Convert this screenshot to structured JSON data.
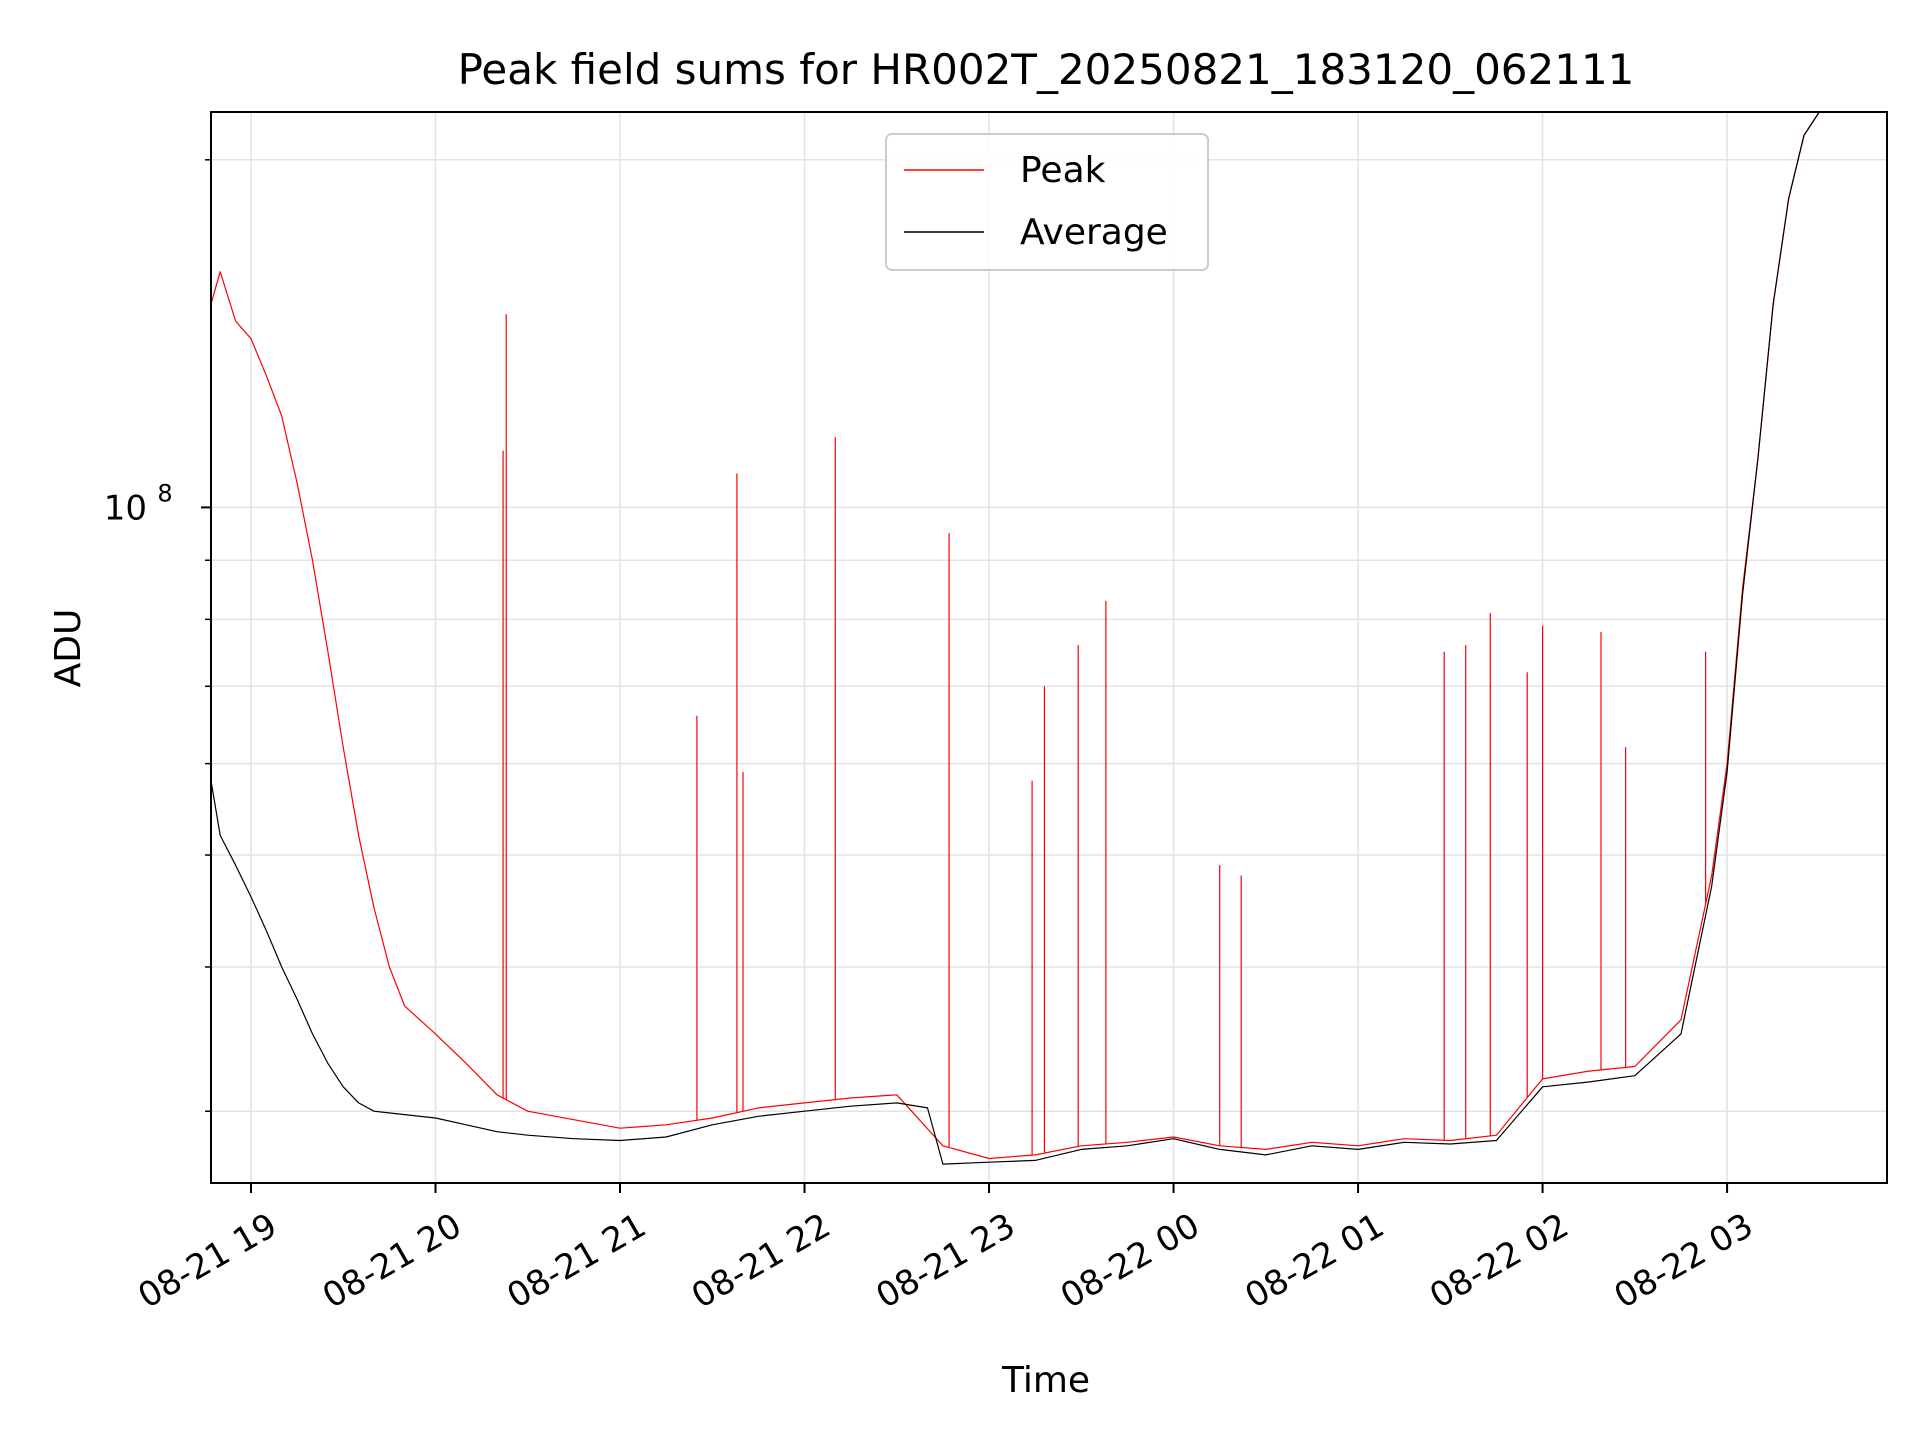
{
  "chart_data": {
    "type": "line",
    "title": "Peak field sums for HR002T_20250821_183120_062111",
    "xlabel": "Time",
    "ylabel": "ADU",
    "y_scale": "log",
    "ylim": [
      26000000,
      220000000
    ],
    "xlim": [
      "2025-08-21 18:47",
      "2025-08-22 03:52"
    ],
    "grid": true,
    "legend_position": "top-center",
    "x_ticks": [
      {
        "label": "08-21 19",
        "time": "2025-08-21 19:00"
      },
      {
        "label": "08-21 20",
        "time": "2025-08-21 20:00"
      },
      {
        "label": "08-21 21",
        "time": "2025-08-21 21:00"
      },
      {
        "label": "08-21 22",
        "time": "2025-08-21 22:00"
      },
      {
        "label": "08-21 23",
        "time": "2025-08-21 23:00"
      },
      {
        "label": "08-22 00",
        "time": "2025-08-22 00:00"
      },
      {
        "label": "08-22 01",
        "time": "2025-08-22 01:00"
      },
      {
        "label": "08-22 02",
        "time": "2025-08-22 02:00"
      },
      {
        "label": "08-22 03",
        "time": "2025-08-22 03:00"
      }
    ],
    "y_tick_major": {
      "base": "10",
      "exp": "8",
      "value": 100000000
    },
    "y_minor_ticks": [
      30000000,
      40000000,
      50000000,
      60000000,
      70000000,
      80000000,
      90000000,
      200000000
    ],
    "series": [
      {
        "name": "Peak",
        "color": "#ff0000",
        "x": [
          "2025-08-21 18:47",
          "2025-08-21 18:50",
          "2025-08-21 18:55",
          "2025-08-21 19:00",
          "2025-08-21 19:05",
          "2025-08-21 19:10",
          "2025-08-21 19:15",
          "2025-08-21 19:20",
          "2025-08-21 19:25",
          "2025-08-21 19:30",
          "2025-08-21 19:35",
          "2025-08-21 19:40",
          "2025-08-21 19:45",
          "2025-08-21 19:50",
          "2025-08-21 20:00",
          "2025-08-21 20:10",
          "2025-08-21 20:20",
          "2025-08-21 20:30",
          "2025-08-21 20:45",
          "2025-08-21 21:00",
          "2025-08-21 21:15",
          "2025-08-21 21:30",
          "2025-08-21 21:45",
          "2025-08-21 22:00",
          "2025-08-21 22:15",
          "2025-08-21 22:30",
          "2025-08-21 22:45",
          "2025-08-21 23:00",
          "2025-08-21 23:15",
          "2025-08-21 23:30",
          "2025-08-21 23:45",
          "2025-08-22 00:00",
          "2025-08-22 00:15",
          "2025-08-22 00:30",
          "2025-08-22 00:45",
          "2025-08-22 01:00",
          "2025-08-22 01:15",
          "2025-08-22 01:30",
          "2025-08-22 01:45",
          "2025-08-22 02:00",
          "2025-08-22 02:15",
          "2025-08-22 02:30",
          "2025-08-22 02:45",
          "2025-08-22 02:55",
          "2025-08-22 03:00",
          "2025-08-22 03:05",
          "2025-08-22 03:10",
          "2025-08-22 03:15",
          "2025-08-22 03:20",
          "2025-08-22 03:25",
          "2025-08-22 03:30",
          "2025-08-22 03:52"
        ],
        "values": [
          150000000,
          160000000,
          145000000,
          140000000,
          130000000,
          120000000,
          105000000,
          90000000,
          75000000,
          62000000,
          52000000,
          45000000,
          40000000,
          37000000,
          35000000,
          33000000,
          31000000,
          30000000,
          29500000,
          29000000,
          29200000,
          29600000,
          30200000,
          30500000,
          30800000,
          31000000,
          28000000,
          27300000,
          27500000,
          28000000,
          28200000,
          28500000,
          28000000,
          27800000,
          28200000,
          28000000,
          28400000,
          28300000,
          28600000,
          32000000,
          32500000,
          32800000,
          36000000,
          48000000,
          60000000,
          85000000,
          110000000,
          150000000,
          185000000,
          210000000,
          220000000,
          220000000
        ],
        "spikes": [
          {
            "x": "2025-08-21 20:23",
            "y": 147000000
          },
          {
            "x": "2025-08-21 20:22",
            "y": 112000000
          },
          {
            "x": "2025-08-21 21:38",
            "y": 107000000
          },
          {
            "x": "2025-08-21 22:10",
            "y": 115000000
          },
          {
            "x": "2025-08-21 21:25",
            "y": 66000000
          },
          {
            "x": "2025-08-21 21:40",
            "y": 59000000
          },
          {
            "x": "2025-08-21 22:47",
            "y": 95000000
          },
          {
            "x": "2025-08-21 23:29",
            "y": 76000000
          },
          {
            "x": "2025-08-21 23:38",
            "y": 83000000
          },
          {
            "x": "2025-08-21 23:18",
            "y": 70000000
          },
          {
            "x": "2025-08-21 23:14",
            "y": 58000000
          },
          {
            "x": "2025-08-22 00:15",
            "y": 49000000
          },
          {
            "x": "2025-08-22 00:22",
            "y": 48000000
          },
          {
            "x": "2025-08-22 01:28",
            "y": 75000000
          },
          {
            "x": "2025-08-22 01:35",
            "y": 76000000
          },
          {
            "x": "2025-08-22 01:43",
            "y": 81000000
          },
          {
            "x": "2025-08-22 02:00",
            "y": 79000000
          },
          {
            "x": "2025-08-22 02:19",
            "y": 78000000
          },
          {
            "x": "2025-08-22 01:55",
            "y": 72000000
          },
          {
            "x": "2025-08-22 02:53",
            "y": 75000000
          },
          {
            "x": "2025-08-22 02:27",
            "y": 62000000
          }
        ]
      },
      {
        "name": "Average",
        "color": "#000000",
        "x": [
          "2025-08-21 18:47",
          "2025-08-21 18:50",
          "2025-08-21 18:55",
          "2025-08-21 19:00",
          "2025-08-21 19:05",
          "2025-08-21 19:10",
          "2025-08-21 19:15",
          "2025-08-21 19:20",
          "2025-08-21 19:25",
          "2025-08-21 19:30",
          "2025-08-21 19:35",
          "2025-08-21 19:40",
          "2025-08-21 19:50",
          "2025-08-21 20:00",
          "2025-08-21 20:10",
          "2025-08-21 20:20",
          "2025-08-21 20:30",
          "2025-08-21 20:45",
          "2025-08-21 21:00",
          "2025-08-21 21:15",
          "2025-08-21 21:30",
          "2025-08-21 21:45",
          "2025-08-21 22:00",
          "2025-08-21 22:15",
          "2025-08-21 22:30",
          "2025-08-21 22:40",
          "2025-08-21 22:45",
          "2025-08-21 23:00",
          "2025-08-21 23:15",
          "2025-08-21 23:30",
          "2025-08-21 23:45",
          "2025-08-22 00:00",
          "2025-08-22 00:15",
          "2025-08-22 00:30",
          "2025-08-22 00:45",
          "2025-08-22 01:00",
          "2025-08-22 01:15",
          "2025-08-22 01:30",
          "2025-08-22 01:45",
          "2025-08-22 02:00",
          "2025-08-22 02:15",
          "2025-08-22 02:30",
          "2025-08-22 02:45",
          "2025-08-22 02:55",
          "2025-08-22 03:00",
          "2025-08-22 03:05",
          "2025-08-22 03:10",
          "2025-08-22 03:15",
          "2025-08-22 03:20",
          "2025-08-22 03:25",
          "2025-08-22 03:30",
          "2025-08-22 03:52"
        ],
        "values": [
          58000000,
          52000000,
          49000000,
          46000000,
          43000000,
          40000000,
          37500000,
          35000000,
          33000000,
          31500000,
          30500000,
          30000000,
          29800000,
          29600000,
          29200000,
          28800000,
          28600000,
          28400000,
          28300000,
          28500000,
          29200000,
          29700000,
          30000000,
          30300000,
          30500000,
          30200000,
          27000000,
          27100000,
          27200000,
          27800000,
          28000000,
          28400000,
          27800000,
          27500000,
          28000000,
          27800000,
          28200000,
          28100000,
          28300000,
          31500000,
          31800000,
          32200000,
          35000000,
          47000000,
          59000000,
          84000000,
          110000000,
          150000000,
          185000000,
          210000000,
          220000000,
          220000000
        ]
      }
    ]
  }
}
